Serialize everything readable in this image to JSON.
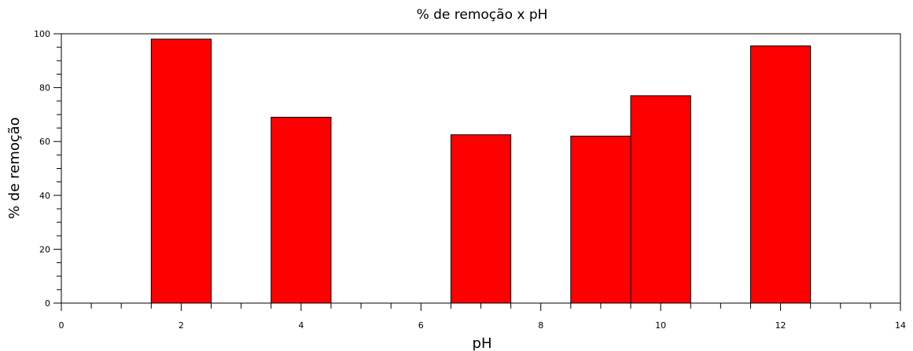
{
  "chart_data": {
    "type": "bar",
    "title": "% de remoção x pH",
    "xlabel": "pH",
    "ylabel": "% de remoção",
    "xlim": [
      0,
      14
    ],
    "ylim": [
      0,
      100
    ],
    "x_ticks": [
      "0",
      "2",
      "4",
      "6",
      "8",
      "10",
      "12",
      "14"
    ],
    "y_ticks": [
      "0",
      "20",
      "40",
      "60",
      "80",
      "100"
    ],
    "x_minor_step": 0.5,
    "y_minor_step": 5,
    "bar_width": 1,
    "grid": false,
    "series": [
      {
        "x": [
          2,
          4,
          7,
          9,
          10,
          12
        ],
        "values": [
          98,
          69,
          62.5,
          62,
          77,
          95.5
        ]
      }
    ],
    "colors": {
      "bar_fill": "#ff0000",
      "bar_stroke": "#000000",
      "axis": "#000000",
      "background": "#ffffff"
    }
  }
}
